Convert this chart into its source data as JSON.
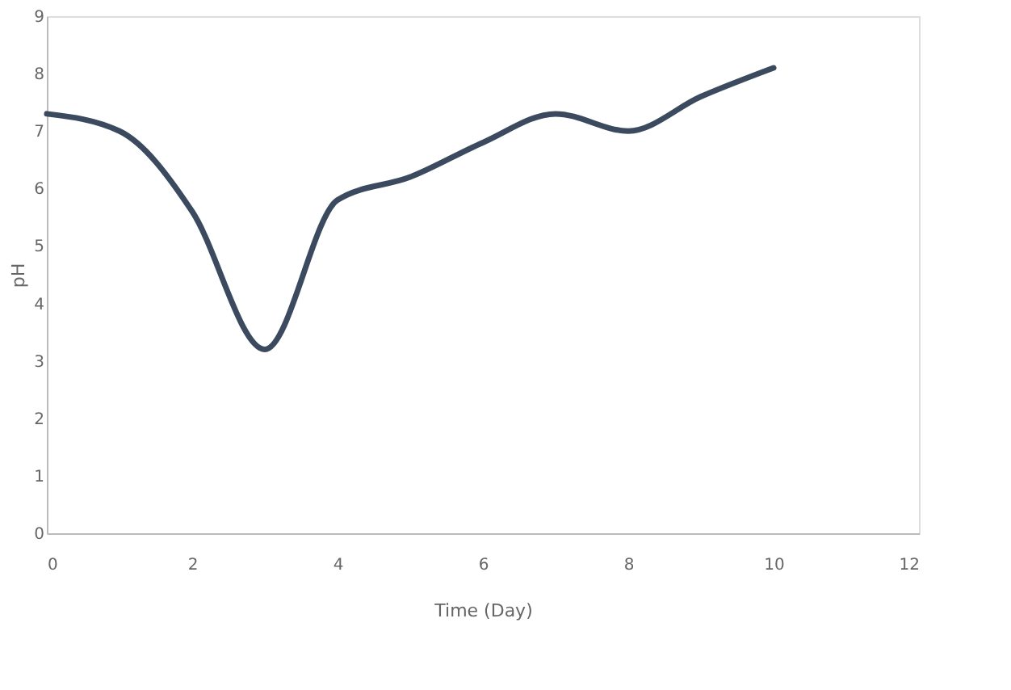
{
  "chart_data": {
    "type": "line",
    "xlabel": "Time (Day)",
    "ylabel": "pH",
    "x": [
      0,
      1,
      2,
      3,
      4,
      5,
      6,
      7,
      8,
      9,
      10
    ],
    "series": [
      {
        "color": "#3b4a5e",
        "values": [
          7.3,
          7.0,
          5.6,
          3.2,
          5.8,
          6.2,
          6.8,
          7.3,
          7.0,
          7.6,
          8.1
        ]
      }
    ],
    "xlim": [
      0,
      12
    ],
    "xticks": [
      0,
      2,
      4,
      6,
      8,
      10,
      12
    ],
    "ylim": [
      0,
      9
    ],
    "yticks": [
      0,
      1,
      2,
      3,
      4,
      5,
      6,
      7,
      8,
      9
    ],
    "grid": false,
    "marker": "none",
    "line_style": "solid"
  }
}
